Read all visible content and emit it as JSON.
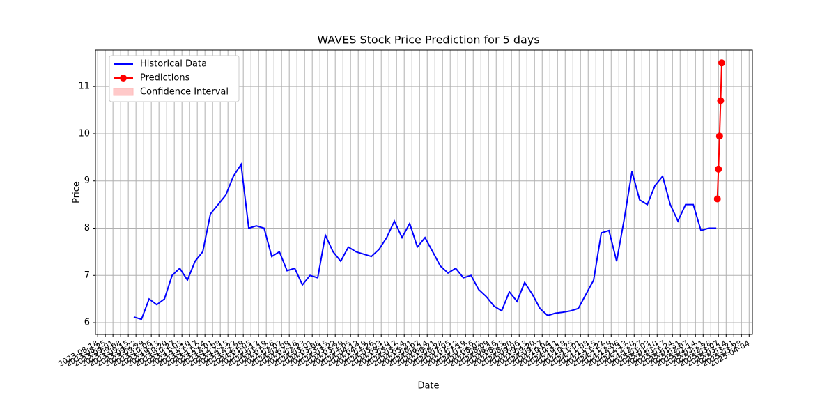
{
  "chart_data": {
    "type": "line",
    "title": "WAVES Stock Price Prediction for 5 days",
    "x_label": "Date",
    "y_label": "Price",
    "ylim": [
      5.75,
      11.77
    ],
    "yticks": [
      6,
      7,
      8,
      9,
      10,
      11
    ],
    "xlim": [
      "2023-08-16",
      "2025-04-07"
    ],
    "xticks": [
      "2023-08-18",
      "2023-08-25",
      "2023-09-01",
      "2023-09-08",
      "2023-09-15",
      "2023-09-22",
      "2023-09-29",
      "2023-10-06",
      "2023-10-13",
      "2023-10-20",
      "2023-10-27",
      "2023-11-03",
      "2023-11-10",
      "2023-11-17",
      "2023-11-24",
      "2023-12-01",
      "2023-12-08",
      "2023-12-15",
      "2023-12-22",
      "2023-12-29",
      "2024-01-05",
      "2024-01-12",
      "2024-01-19",
      "2024-01-26",
      "2024-02-02",
      "2024-02-09",
      "2024-02-16",
      "2024-02-23",
      "2024-03-01",
      "2024-03-08",
      "2024-03-15",
      "2024-03-22",
      "2024-03-29",
      "2024-04-05",
      "2024-04-12",
      "2024-04-19",
      "2024-04-26",
      "2024-05-03",
      "2024-05-10",
      "2024-05-17",
      "2024-05-24",
      "2024-05-31",
      "2024-06-07",
      "2024-06-14",
      "2024-06-21",
      "2024-06-28",
      "2024-07-05",
      "2024-07-12",
      "2024-07-19",
      "2024-07-26",
      "2024-08-02",
      "2024-08-09",
      "2024-08-16",
      "2024-08-23",
      "2024-08-30",
      "2024-09-06",
      "2024-09-13",
      "2024-09-20",
      "2024-09-27",
      "2024-10-04",
      "2024-10-11",
      "2024-10-18",
      "2024-10-25",
      "2024-11-01",
      "2024-11-08",
      "2024-11-15",
      "2024-11-22",
      "2024-11-29",
      "2024-12-06",
      "2024-12-13",
      "2024-12-20",
      "2024-12-27",
      "2025-01-03",
      "2025-01-10",
      "2025-01-17",
      "2025-01-24",
      "2025-01-31",
      "2025-02-07",
      "2025-02-14",
      "2025-02-21",
      "2025-02-28",
      "2025-03-07",
      "2025-03-14",
      "2025-03-21",
      "2025-03-28",
      "2025-04-04"
    ],
    "grid": true,
    "legend": "upper left",
    "series": [
      {
        "name": "Historical Data",
        "color": "#0000ff",
        "marker": false,
        "x": [
          "2023-09-20",
          "2023-09-27",
          "2023-10-04",
          "2023-10-11",
          "2023-10-18",
          "2023-10-25",
          "2023-11-01",
          "2023-11-08",
          "2023-11-15",
          "2023-11-22",
          "2023-11-29",
          "2023-12-06",
          "2023-12-13",
          "2023-12-20",
          "2023-12-27",
          "2024-01-03",
          "2024-01-10",
          "2024-01-17",
          "2024-01-24",
          "2024-01-31",
          "2024-02-07",
          "2024-02-14",
          "2024-02-21",
          "2024-02-28",
          "2024-03-06",
          "2024-03-13",
          "2024-03-20",
          "2024-03-27",
          "2024-04-03",
          "2024-04-10",
          "2024-04-17",
          "2024-04-24",
          "2024-05-01",
          "2024-05-08",
          "2024-05-15",
          "2024-05-22",
          "2024-05-29",
          "2024-06-05",
          "2024-06-12",
          "2024-06-19",
          "2024-06-26",
          "2024-07-03",
          "2024-07-10",
          "2024-07-17",
          "2024-07-24",
          "2024-07-31",
          "2024-08-07",
          "2024-08-14",
          "2024-08-21",
          "2024-08-28",
          "2024-09-04",
          "2024-09-11",
          "2024-09-18",
          "2024-09-25",
          "2024-10-02",
          "2024-10-09",
          "2024-10-16",
          "2024-10-23",
          "2024-10-30",
          "2024-11-06",
          "2024-11-13",
          "2024-11-20",
          "2024-11-27",
          "2024-12-04",
          "2024-12-11",
          "2024-12-18",
          "2024-12-25",
          "2025-01-01",
          "2025-01-08",
          "2025-01-15",
          "2025-01-22",
          "2025-01-29",
          "2025-02-05",
          "2025-02-12",
          "2025-02-19",
          "2025-02-26",
          "2025-03-05"
        ],
        "values": [
          6.12,
          6.07,
          6.5,
          6.38,
          6.5,
          7.0,
          7.15,
          6.9,
          7.3,
          7.5,
          8.3,
          8.5,
          8.7,
          9.1,
          9.35,
          8.0,
          8.05,
          8.0,
          7.4,
          7.5,
          7.1,
          7.15,
          6.8,
          7.0,
          6.95,
          7.85,
          7.5,
          7.3,
          7.6,
          7.5,
          7.45,
          7.4,
          7.55,
          7.8,
          8.15,
          7.8,
          8.1,
          7.6,
          7.8,
          7.5,
          7.2,
          7.05,
          7.15,
          6.95,
          7.0,
          6.7,
          6.55,
          6.35,
          6.25,
          6.65,
          6.45,
          6.85,
          6.6,
          6.3,
          6.15,
          6.2,
          6.22,
          6.25,
          6.3,
          6.6,
          6.9,
          7.9,
          7.95,
          7.3,
          8.2,
          9.2,
          8.6,
          8.5,
          8.9,
          9.1,
          8.5,
          8.15,
          8.5,
          8.5,
          7.95,
          8.0,
          8.0
        ]
      },
      {
        "name": "Predictions",
        "color": "#ff0000",
        "marker": true,
        "x": [
          "2025-03-06",
          "2025-03-07",
          "2025-03-08",
          "2025-03-09",
          "2025-03-10"
        ],
        "values": [
          8.62,
          9.25,
          9.95,
          10.7,
          11.5
        ]
      },
      {
        "name": "Confidence Interval",
        "color": "#ffbbbb",
        "band": true
      }
    ]
  }
}
